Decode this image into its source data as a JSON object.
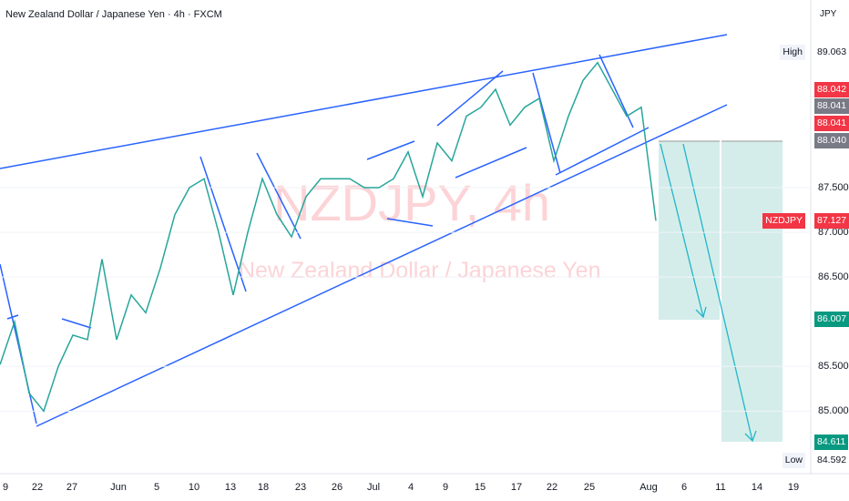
{
  "header": {
    "title": "New Zealand Dollar / Japanese Yen · 4h · FXCM",
    "currency": "JPY"
  },
  "watermark": {
    "symbol": "NZDJPY, 4h",
    "name": "New Zealand Dollar / Japanese Yen"
  },
  "time_axis": [
    "9",
    "22",
    "27",
    "Jun",
    "5",
    "10",
    "13",
    "18",
    "23",
    "26",
    "Jul",
    "4",
    "9",
    "15",
    "17",
    "22",
    "25",
    "Aug",
    "6",
    "11",
    "14",
    "19"
  ],
  "price_labels": [
    {
      "tag": "High",
      "price": "89.063"
    },
    {
      "price": "88.042"
    },
    {
      "price": "88.041"
    },
    {
      "price": "88.041"
    },
    {
      "price": "88.040"
    },
    {
      "tag": "NZDJPY",
      "price": "87.127"
    },
    {
      "price": "86.007"
    },
    {
      "price": "84.611"
    },
    {
      "tag": "Low",
      "price": "84.592"
    }
  ],
  "chart_data": {
    "type": "line",
    "color": "#26a69a",
    "values": [
      85.52,
      86.0,
      85.2,
      85.0,
      85.5,
      85.85,
      85.8,
      86.7,
      85.8,
      86.3,
      86.1,
      86.6,
      87.2,
      87.5,
      87.6,
      87.0,
      86.3,
      87.0,
      87.6,
      87.2,
      86.95,
      87.4,
      87.6,
      87.6,
      87.6,
      87.5,
      87.5,
      87.6,
      87.9,
      87.4,
      88.0,
      87.8,
      88.3,
      88.4,
      88.6,
      88.2,
      88.4,
      88.5,
      87.8,
      88.3,
      88.7,
      88.9,
      88.6,
      88.3,
      88.4,
      87.13
    ],
    "ylim": [
      84.3,
      89.6
    ],
    "yticks": [
      {
        "value": 85,
        "label": "85.000"
      },
      {
        "value": 85.5,
        "label": "85.500"
      },
      {
        "value": 86.5,
        "label": "86.500"
      },
      {
        "value": 87,
        "label": "87.000"
      },
      {
        "value": 87.5,
        "label": "87.500"
      }
    ],
    "grid": true
  }
}
